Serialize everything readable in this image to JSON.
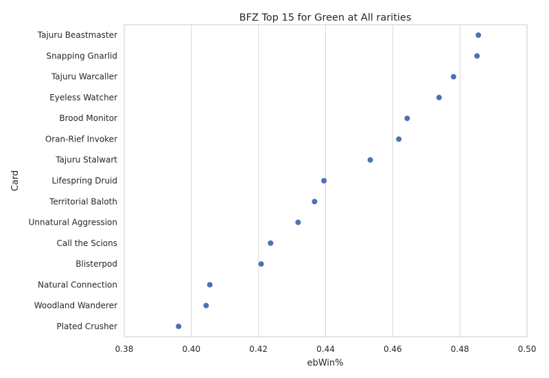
{
  "chart_data": {
    "type": "scatter",
    "title": "BFZ Top 15 for Green at All rarities",
    "xlabel": "ebWin%",
    "ylabel": "Card",
    "xlim": [
      0.38,
      0.5
    ],
    "xticks": [
      "0.38",
      "0.40",
      "0.42",
      "0.44",
      "0.46",
      "0.48",
      "0.50"
    ],
    "grid": "vertical",
    "point_color": "#4c72b0",
    "categories": [
      "Tajuru Beastmaster",
      "Snapping Gnarlid",
      "Tajuru Warcaller",
      "Eyeless Watcher",
      "Brood Monitor",
      "Oran-Rief Invoker",
      "Tajuru Stalwart",
      "Lifespring Druid",
      "Territorial Baloth",
      "Unnatural Aggression",
      "Call the Scions",
      "Blisterpod",
      "Natural Connection",
      "Woodland Wanderer",
      "Plated Crusher"
    ],
    "values": [
      0.4855,
      0.4851,
      0.4781,
      0.4738,
      0.4643,
      0.4618,
      0.4533,
      0.4395,
      0.4367,
      0.4318,
      0.4236,
      0.4208,
      0.4055,
      0.4044,
      0.3962
    ]
  }
}
